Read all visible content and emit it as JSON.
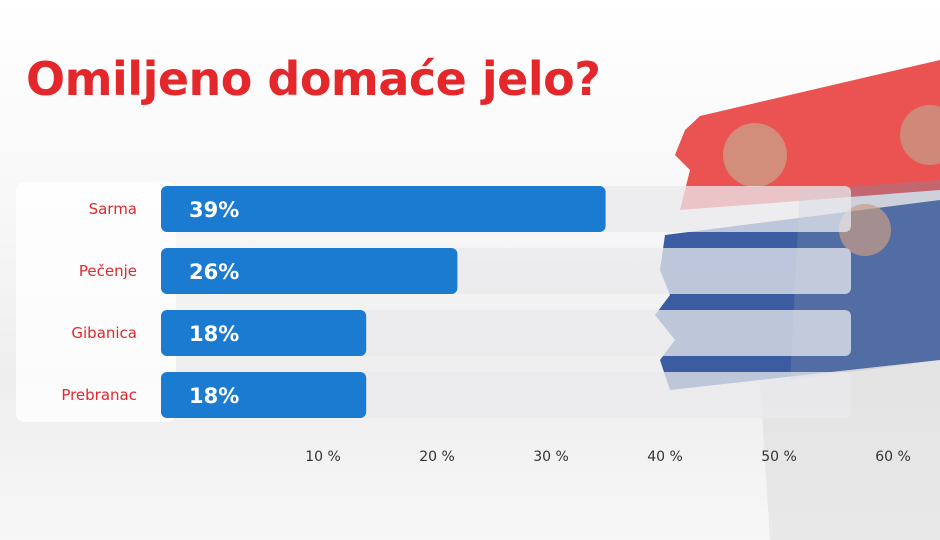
{
  "page": {
    "title": "Omiljeno domaće jelo?"
  },
  "colors": {
    "title": "#e3272b",
    "bar": "#1a7bd1",
    "track": "#e9e9ee",
    "category_label": "#e3272b",
    "flag_red": "#e8403e",
    "flag_blue": "#2c4f9a"
  },
  "chart_data": {
    "type": "bar",
    "orientation": "horizontal",
    "categories": [
      "Sarma",
      "Pečenje",
      "Gibanica",
      "Prebranac"
    ],
    "values": [
      39,
      26,
      18,
      18
    ],
    "value_labels": [
      "39%",
      "26%",
      "18%",
      "18%"
    ],
    "x_ticks": [
      10,
      20,
      30,
      40,
      50,
      60
    ],
    "x_tick_labels": [
      "10 %",
      "20 %",
      "30 %",
      "40 %",
      "50 %",
      "60 %"
    ],
    "xlim": [
      0,
      60
    ],
    "grid": false,
    "legend": "none"
  }
}
